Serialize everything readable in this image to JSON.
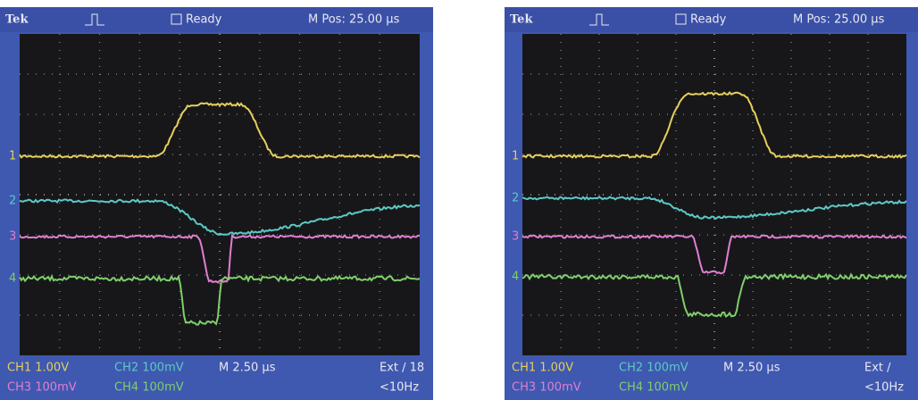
{
  "screens": [
    {
      "header": {
        "brand": "Tek",
        "status": "Ready",
        "position": "M Pos: 25.00 µs"
      },
      "channel_markers": [
        "1",
        "2",
        "3",
        "4"
      ],
      "footer": {
        "ch1": "CH1 1.00V",
        "ch2": "CH2 100mV",
        "timebase": "M 2.50 µs",
        "trigger": "Ext ∕ 18",
        "ch3": "CH3 100mV",
        "ch4": "CH4 100mV",
        "frequency": "<10Hz"
      }
    },
    {
      "header": {
        "brand": "Tek",
        "status": "Ready",
        "position": "M Pos: 25.00 µs"
      },
      "channel_markers": [
        "1",
        "2",
        "3",
        "4"
      ],
      "footer": {
        "ch1": "CH1 1.00V",
        "ch2": "CH2 100mV",
        "timebase": "M 2.50 µs",
        "trigger": "Ext ∕",
        "ch3": "CH3 100mV",
        "ch4": "CH4 100mV",
        "frequency": "<10Hz"
      }
    }
  ]
}
